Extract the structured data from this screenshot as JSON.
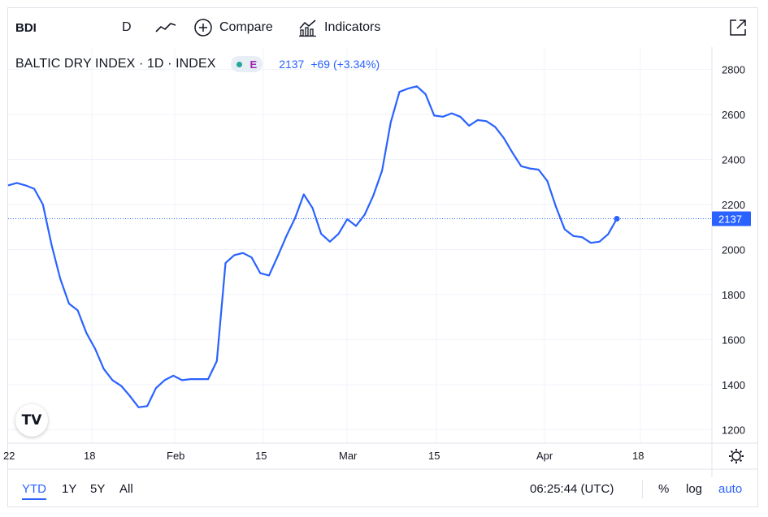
{
  "toolbar": {
    "symbol": "BDI",
    "interval": "D",
    "line_type_icon": "line-chart-icon",
    "compare_icon": "plus-circle-icon",
    "compare_label": "Compare",
    "indicators_icon": "indicators-icon",
    "indicators_label": "Indicators",
    "fullscreen_icon": "external-expand-icon"
  },
  "legend": {
    "title": "BALTIC DRY INDEX · 1D · INDEX",
    "status_badge": "E",
    "price": "2137",
    "change": "+69 (+3.34%)"
  },
  "chart_data": {
    "type": "line",
    "title": "BALTIC DRY INDEX · 1D · INDEX",
    "ylim": [
      1150,
      2870
    ],
    "yticks": [
      1200,
      1400,
      1600,
      1800,
      2000,
      2200,
      2400,
      2600,
      2800
    ],
    "x_tick_labels": [
      "22",
      "18",
      "Feb",
      "15",
      "Mar",
      "15",
      "Apr",
      "18"
    ],
    "last_price_label": "2137",
    "grid": true,
    "x": [
      "Jan 4",
      "Jan 5",
      "Jan 6",
      "Jan 7",
      "Jan 10",
      "Jan 11",
      "Jan 12",
      "Jan 13",
      "Jan 14",
      "Jan 17",
      "Jan 18",
      "Jan 19",
      "Jan 20",
      "Jan 21",
      "Jan 24",
      "Jan 25",
      "Jan 26",
      "Jan 27",
      "Jan 28",
      "Jan 31",
      "Feb 1",
      "Feb 2",
      "Feb 3",
      "Feb 4",
      "Feb 7",
      "Feb 8",
      "Feb 9",
      "Feb 10",
      "Feb 11",
      "Feb 14",
      "Feb 15",
      "Feb 16",
      "Feb 17",
      "Feb 18",
      "Feb 21",
      "Feb 22",
      "Feb 23",
      "Feb 24",
      "Feb 25",
      "Feb 28",
      "Mar 1",
      "Mar 2",
      "Mar 3",
      "Mar 4",
      "Mar 7",
      "Mar 8",
      "Mar 9",
      "Mar 10",
      "Mar 11",
      "Mar 14",
      "Mar 15",
      "Mar 16",
      "Mar 17",
      "Mar 18",
      "Mar 21",
      "Mar 22",
      "Mar 23",
      "Mar 24",
      "Mar 25",
      "Mar 28",
      "Mar 29",
      "Mar 30",
      "Mar 31",
      "Apr 1",
      "Apr 4",
      "Apr 5",
      "Apr 6",
      "Apr 7",
      "Apr 8",
      "Apr 11",
      "Apr 12"
    ],
    "series": [
      {
        "color": "#2962ff",
        "values": [
          2285,
          2296,
          2285,
          2270,
          2200,
          2020,
          1870,
          1760,
          1730,
          1630,
          1560,
          1470,
          1420,
          1395,
          1350,
          1300,
          1305,
          1385,
          1420,
          1440,
          1420,
          1425,
          1425,
          1425,
          1505,
          1940,
          1975,
          1985,
          1965,
          1895,
          1885,
          1970,
          2060,
          2140,
          2245,
          2185,
          2070,
          2035,
          2070,
          2135,
          2105,
          2155,
          2240,
          2350,
          2565,
          2700,
          2715,
          2725,
          2690,
          2595,
          2590,
          2605,
          2590,
          2550,
          2575,
          2570,
          2545,
          2495,
          2430,
          2370,
          2360,
          2355,
          2305,
          2190,
          2090,
          2060,
          2055,
          2030,
          2035,
          2068,
          2137
        ]
      }
    ]
  },
  "bottom_bar": {
    "ranges": [
      "YTD",
      "1Y",
      "5Y",
      "All"
    ],
    "active_range": "YTD",
    "time": "06:25:44 (UTC)",
    "percent": "%",
    "log": "log",
    "auto": "auto"
  },
  "colors": {
    "line": "#2962ff",
    "accent": "#2962ff",
    "grid": "#f0f3fa",
    "text": "#131722"
  },
  "logo": "TV"
}
